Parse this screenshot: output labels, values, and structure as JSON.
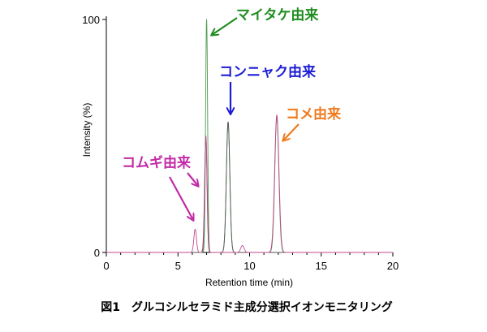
{
  "chart_data": {
    "type": "line",
    "title": "",
    "xlabel": "Retention time (min)",
    "ylabel": "Intensity (%)",
    "xlim": [
      0,
      20
    ],
    "ylim": [
      0,
      100
    ],
    "xticks": [
      0,
      5,
      10,
      15,
      20
    ],
    "yticks": [
      0,
      100
    ],
    "grid": false,
    "series": [
      {
        "color": "#4d9a4d",
        "peaks": [
          {
            "x": 7.0,
            "y": 100,
            "w": 0.07
          },
          {
            "x": 8.5,
            "y": 56,
            "w": 0.12
          },
          {
            "x": 11.9,
            "y": 58,
            "w": 0.14
          }
        ]
      },
      {
        "color": "#555555",
        "peaks": [
          {
            "x": 6.95,
            "y": 49,
            "w": 0.08
          },
          {
            "x": 8.5,
            "y": 56,
            "w": 0.12
          }
        ]
      },
      {
        "color": "#c24a8e",
        "peaks": [
          {
            "x": 6.2,
            "y": 10,
            "w": 0.09
          },
          {
            "x": 6.95,
            "y": 50,
            "w": 0.09
          },
          {
            "x": 9.5,
            "y": 3,
            "w": 0.12
          },
          {
            "x": 11.9,
            "y": 59,
            "w": 0.15
          }
        ]
      }
    ],
    "annotations": [
      {
        "text": "マイタケ由来",
        "color": "#1f8c1f"
      },
      {
        "text": "コンニャク由来",
        "color": "#1c1cd6"
      },
      {
        "text": "コメ由来",
        "color": "#f07a1e"
      },
      {
        "text": "コムギ由来",
        "color": "#c22aa8"
      }
    ]
  },
  "caption": "図1　グルコシルセラミド主成分選択イオンモニタリング"
}
